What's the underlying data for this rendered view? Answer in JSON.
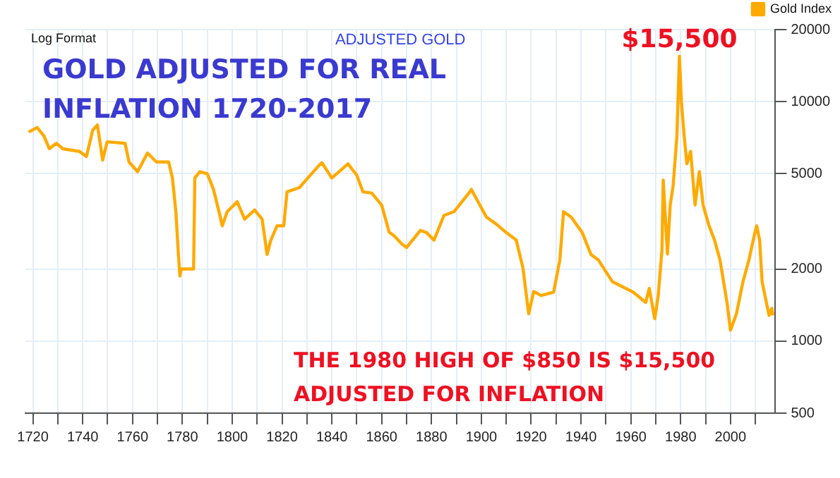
{
  "chart_data": {
    "type": "line",
    "title": "GOLD ADJUSTED FOR REAL INFLATION 1720-2017",
    "subtitle": "ADJUSTED GOLD",
    "annotations": [
      "Log Format",
      {
        "text": "$15,500",
        "x": 1979.5,
        "y": 15500
      },
      "THE 1980 HIGH OF $850 IS $15,500 ADJUSTED FOR INFLATION"
    ],
    "log": "y",
    "grid": true,
    "legend": "top right",
    "marker": "none",
    "line_style": "solid",
    "xlim": [
      1717,
      2018
    ],
    "xticks": [
      1720,
      {
        "value": 1730,
        "label": null
      },
      1740,
      {
        "value": 1750,
        "label": null
      },
      1760,
      {
        "value": 1770,
        "label": null
      },
      1780,
      {
        "value": 1790,
        "label": null
      },
      1800,
      {
        "value": 1810,
        "label": null
      },
      1820,
      {
        "value": 1830,
        "label": null
      },
      1840,
      {
        "value": 1850,
        "label": null
      },
      1860,
      {
        "value": 1870,
        "label": null
      },
      1880,
      {
        "value": 1890,
        "label": null
      },
      1900,
      {
        "value": 1910,
        "label": null
      },
      1920,
      {
        "value": 1930,
        "label": null
      },
      1940,
      {
        "value": 1950,
        "label": null
      },
      1960,
      {
        "value": 1970,
        "label": null
      },
      1980,
      {
        "value": 1990,
        "label": null
      },
      2000,
      {
        "value": 2010,
        "label": null
      }
    ],
    "ylim": [
      500,
      20000
    ],
    "yticks": [
      500,
      1000,
      2000,
      5000,
      10000,
      20000
    ],
    "series": [
      {
        "name": "Gold Index",
        "color": "#ffaa00",
        "x": [
          1718.3,
          1721.7,
          1724.4,
          1726.6,
          1729.4,
          1732,
          1738.7,
          1741.5,
          1744,
          1745.9,
          1748,
          1749.8,
          1757,
          1758.6,
          1762,
          1766,
          1769.6,
          1774.5,
          1776,
          1777.4,
          1778.4,
          1779,
          1779.5,
          1784.5,
          1785,
          1787,
          1790,
          1792.5,
          1795,
          1796,
          1798,
          1802,
          1805,
          1809,
          1812,
          1813,
          1814,
          1815.5,
          1818,
          1820.7,
          1822,
          1827,
          1834.7,
          1836,
          1840,
          1846.5,
          1850,
          1852.5,
          1856,
          1860,
          1863,
          1865,
          1868,
          1870,
          1875.5,
          1878,
          1881,
          1885,
          1889,
          1895,
          1896,
          1902,
          1906,
          1910,
          1914,
          1916.7,
          1919,
          1921,
          1924,
          1929,
          1931.5,
          1933,
          1936,
          1940.5,
          1944,
          1947,
          1952.6,
          1961,
          1966,
          1967.4,
          1969.6,
          1971,
          1972.5,
          1973,
          1974.7,
          1975.8,
          1977,
          1978.5,
          1979.5,
          1980.3,
          1981.4,
          1982.5,
          1984,
          1985.8,
          1987.5,
          1989,
          1991.4,
          1993.6,
          1995.8,
          1998.6,
          2000,
          2002.4,
          2005,
          2007.4,
          2009.5,
          2010.5,
          2011.7,
          2012.7,
          2014.4,
          2015.5,
          2016.6,
          2017
        ],
        "values": [
          7460,
          7800,
          7200,
          6360,
          6700,
          6360,
          6200,
          5900,
          7600,
          8000,
          5700,
          6800,
          6700,
          5600,
          5100,
          6100,
          5600,
          5600,
          4800,
          3470,
          2310,
          1870,
          2000,
          2000,
          4800,
          5100,
          5000,
          4300,
          3370,
          3030,
          3470,
          3820,
          3230,
          3530,
          3230,
          2730,
          2300,
          2640,
          3030,
          3030,
          4200,
          4380,
          5400,
          5560,
          4800,
          5500,
          4930,
          4200,
          4150,
          3700,
          2850,
          2750,
          2550,
          2460,
          2900,
          2840,
          2640,
          3350,
          3470,
          4150,
          4300,
          3300,
          3080,
          2840,
          2640,
          2020,
          1300,
          1610,
          1550,
          1600,
          2180,
          3470,
          3300,
          2840,
          2300,
          2180,
          1770,
          1600,
          1450,
          1660,
          1240,
          1550,
          2400,
          4700,
          2310,
          3700,
          4470,
          7200,
          15500,
          10000,
          7200,
          5500,
          6200,
          3700,
          5100,
          3700,
          3030,
          2640,
          2180,
          1450,
          1110,
          1300,
          1770,
          2180,
          2750,
          3030,
          2640,
          1770,
          1450,
          1280,
          1370,
          1280
        ]
      }
    ]
  }
}
